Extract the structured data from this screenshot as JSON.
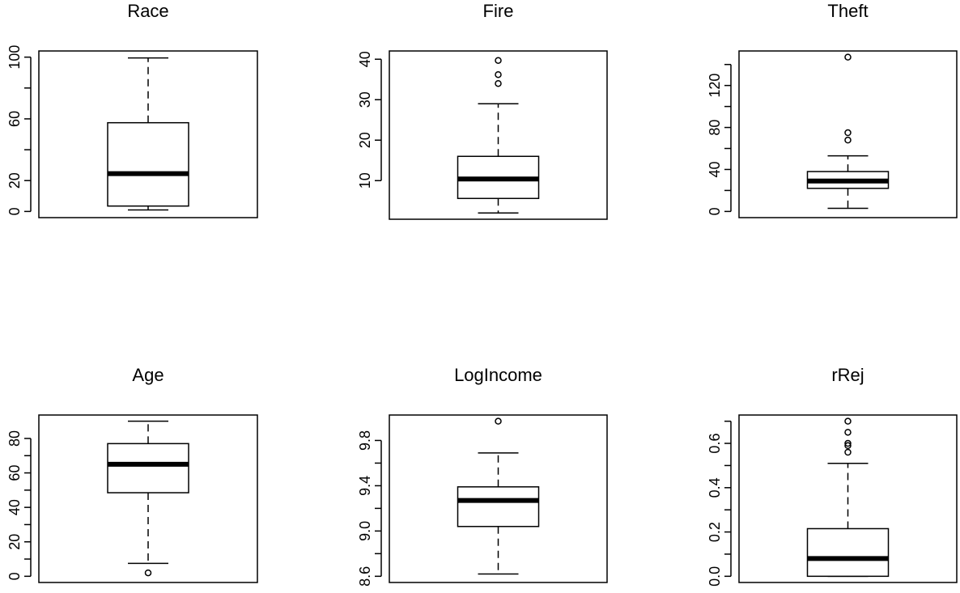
{
  "chart_data": [
    {
      "type": "boxplot",
      "title": "Race",
      "ylim": [
        0,
        100
      ],
      "yticks": [
        0,
        20,
        40,
        60,
        80,
        100
      ],
      "ytick_labels": [
        "0",
        "20",
        "",
        "60",
        "",
        "100"
      ],
      "stats": {
        "lower_whisker": 1,
        "q1": 3.5,
        "median": 24.5,
        "q3": 57.5,
        "upper_whisker": 99.5
      },
      "outliers": []
    },
    {
      "type": "boxplot",
      "title": "Fire",
      "ylim": [
        2,
        40.5
      ],
      "yticks": [
        10,
        20,
        30,
        40
      ],
      "ytick_labels": [
        "10",
        "20",
        "30",
        "40"
      ],
      "stats": {
        "lower_whisker": 2,
        "q1": 5.6,
        "median": 10.4,
        "q3": 16,
        "upper_whisker": 29
      },
      "outliers": [
        34,
        36.2,
        39.7
      ]
    },
    {
      "type": "boxplot",
      "title": "Theft",
      "ylim": [
        0,
        147
      ],
      "yticks": [
        0,
        20,
        40,
        60,
        80,
        100,
        120,
        140
      ],
      "ytick_labels": [
        "0",
        "",
        "40",
        "",
        "80",
        "",
        "120",
        ""
      ],
      "stats": {
        "lower_whisker": 3,
        "q1": 22,
        "median": 29,
        "q3": 38,
        "upper_whisker": 53
      },
      "outliers": [
        68,
        75,
        147
      ]
    },
    {
      "type": "boxplot",
      "title": "Age",
      "ylim": [
        0,
        90
      ],
      "yticks": [
        0,
        10,
        20,
        30,
        40,
        50,
        60,
        70,
        80
      ],
      "ytick_labels": [
        "0",
        "",
        "20",
        "",
        "40",
        "",
        "60",
        "",
        "80"
      ],
      "stats": {
        "lower_whisker": 7.5,
        "q1": 48.5,
        "median": 65,
        "q3": 77,
        "upper_whisker": 90
      },
      "outliers": [
        2
      ]
    },
    {
      "type": "boxplot",
      "title": "LogIncome",
      "ylim": [
        8.6,
        9.97
      ],
      "yticks": [
        8.6,
        8.8,
        9.0,
        9.2,
        9.4,
        9.6,
        9.8
      ],
      "ytick_labels": [
        "8.6",
        "",
        "9.0",
        "",
        "9.4",
        "",
        "9.8"
      ],
      "stats": {
        "lower_whisker": 8.62,
        "q1": 9.04,
        "median": 9.27,
        "q3": 9.39,
        "upper_whisker": 9.69
      },
      "outliers": [
        9.97
      ]
    },
    {
      "type": "boxplot",
      "title": "rRej",
      "ylim": [
        0,
        0.7
      ],
      "yticks": [
        0,
        0.1,
        0.2,
        0.3,
        0.4,
        0.5,
        0.6,
        0.7
      ],
      "ytick_labels": [
        "0.0",
        "",
        "0.2",
        "",
        "0.4",
        "",
        "0.6",
        ""
      ],
      "stats": {
        "lower_whisker": 0,
        "q1": 0,
        "median": 0.08,
        "q3": 0.215,
        "upper_whisker": 0.51
      },
      "outliers": [
        0.56,
        0.59,
        0.6,
        0.65,
        0.7
      ]
    }
  ]
}
